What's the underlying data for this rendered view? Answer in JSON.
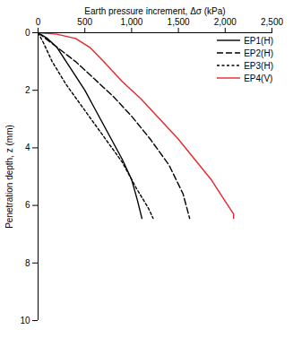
{
  "chart_data": {
    "type": "line",
    "x_label": "Earth pressure increment, Δσ (kPa)",
    "y_label": "Penetration depth, z (mm)",
    "xlim": [
      0,
      2500
    ],
    "xticks": [
      0,
      500,
      1000,
      1500,
      2000,
      2500
    ],
    "ylim": [
      0,
      10
    ],
    "yticks": [
      0,
      2,
      4,
      6,
      8,
      10
    ],
    "grid": false,
    "legend": "top-right",
    "series": [
      {
        "name": "EP1(H)",
        "color": "#000000",
        "line_style": "solid",
        "x": [
          0,
          100,
          200,
          300,
          400,
          500,
          600,
          700,
          800,
          900,
          1000,
          1060,
          1110
        ],
        "values": [
          0,
          0.2,
          0.5,
          1,
          1.5,
          2,
          2.6,
          3.2,
          3.8,
          4.4,
          5.1,
          5.8,
          6.45
        ]
      },
      {
        "name": "EP2(H)",
        "color": "#000000",
        "line_style": "long_dash",
        "x": [
          0,
          200,
          400,
          600,
          800,
          1000,
          1200,
          1400,
          1550,
          1620
        ],
        "values": [
          0,
          0.5,
          1,
          1.6,
          2.2,
          2.9,
          3.7,
          4.6,
          5.6,
          6.45
        ]
      },
      {
        "name": "EP3(H)",
        "color": "#000000",
        "line_style": "dash",
        "x": [
          0,
          50,
          150,
          300,
          500,
          700,
          900,
          1050,
          1180,
          1230
        ],
        "values": [
          0,
          0.3,
          1,
          1.8,
          2.7,
          3.6,
          4.5,
          5.4,
          6.1,
          6.45
        ]
      },
      {
        "name": "EP4(V)",
        "color": "#e8262a",
        "line_style": "solid",
        "x": [
          0,
          200,
          400,
          550,
          700,
          900,
          1100,
          1300,
          1500,
          1700,
          1850,
          1950,
          2050,
          2090,
          2090
        ],
        "values": [
          0,
          0.05,
          0.2,
          0.5,
          1,
          1.7,
          2.3,
          3,
          3.7,
          4.5,
          5.1,
          5.6,
          6.1,
          6.3,
          6.45
        ]
      }
    ]
  }
}
